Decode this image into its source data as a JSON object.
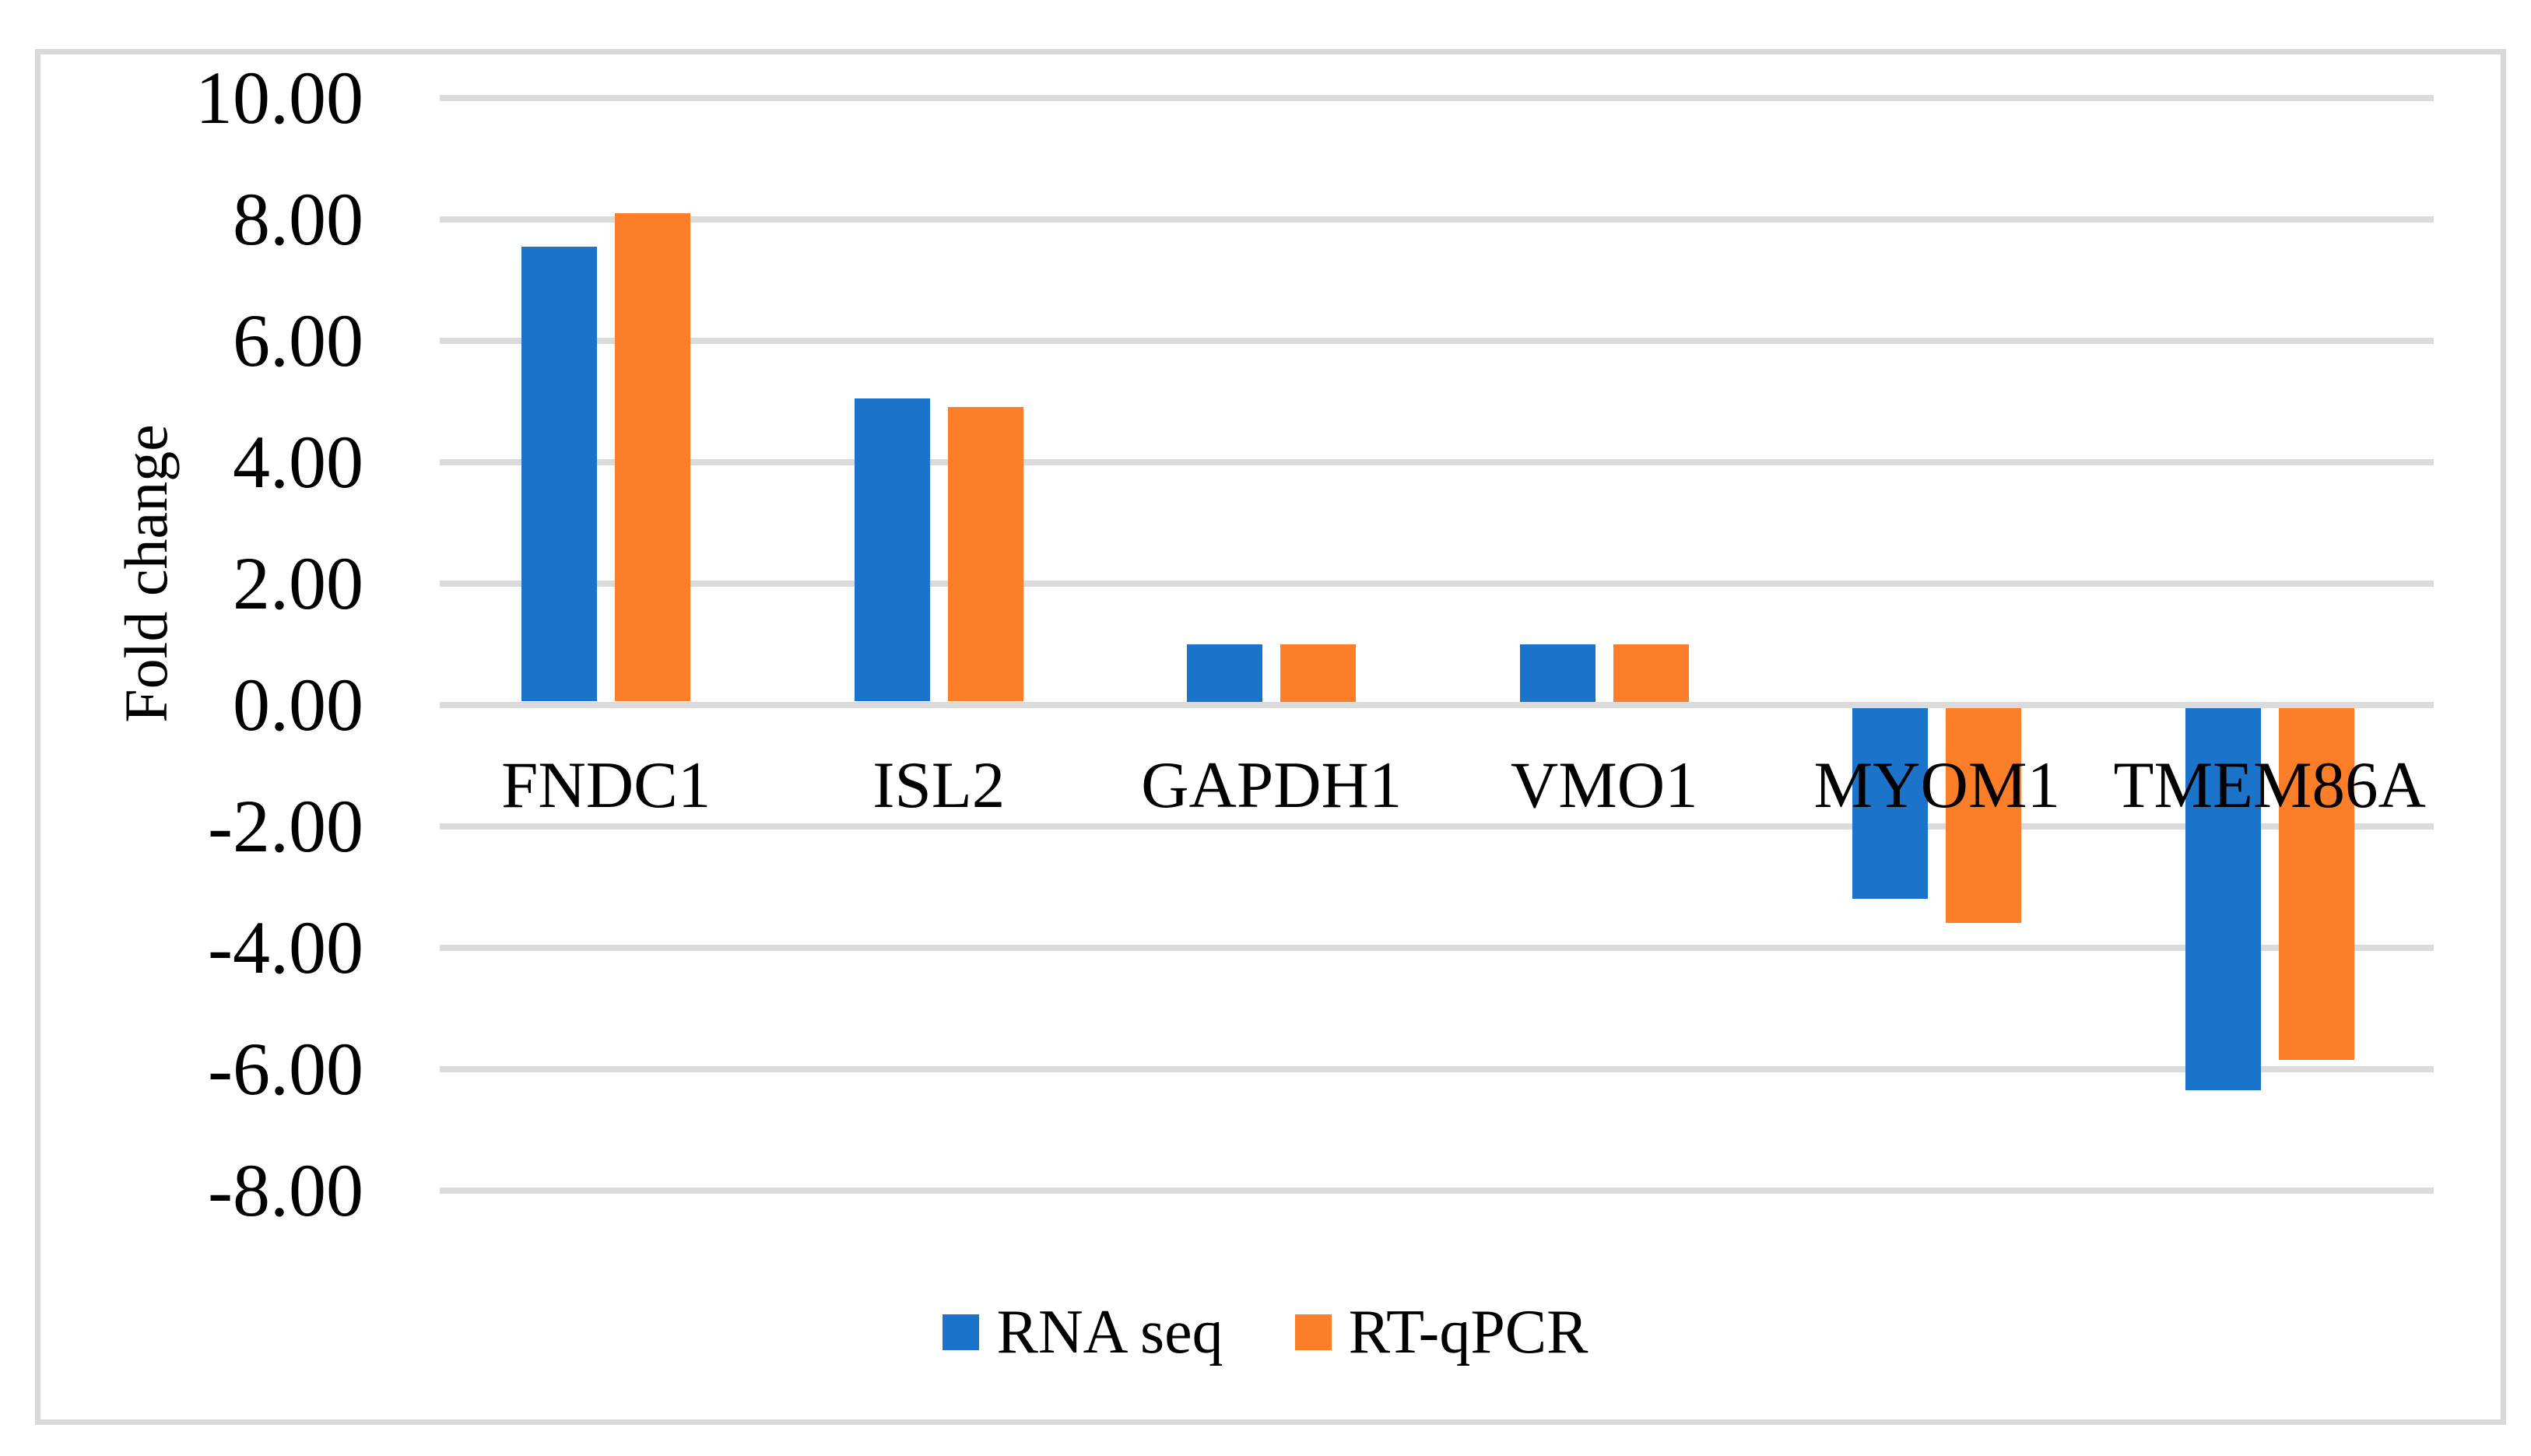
{
  "figure": {
    "background": "#FFFFFF",
    "frame_color": "#D9D9D9"
  },
  "chart_data": {
    "type": "bar",
    "title": "",
    "xlabel": "",
    "ylabel": "Fold change",
    "categories": [
      "FNDC1",
      "ISL2",
      "GAPDH1",
      "VMO1",
      "MYOM1",
      "TMEM86A"
    ],
    "series": [
      {
        "name": "RNA seq",
        "color": "#1B74CA",
        "values": [
          7.55,
          5.05,
          1.0,
          1.0,
          -3.2,
          -6.35
        ]
      },
      {
        "name": "RT-qPCR",
        "color": "#FD7E28",
        "values": [
          8.1,
          4.9,
          1.0,
          1.0,
          -3.6,
          -5.85
        ]
      }
    ],
    "ylim": [
      -8,
      10
    ],
    "ytick_step": 2,
    "ytick_labels": [
      "10.00",
      "8.00",
      "6.00",
      "4.00",
      "2.00",
      "0.00",
      "-2.00",
      "-4.00",
      "-6.00",
      "-8.00"
    ],
    "grid": true,
    "gridline_color": "#DBDBDB",
    "legend_position": "bottom-center"
  },
  "legend": {
    "items": [
      {
        "label": "RNA seq",
        "color": "#1B74CA",
        "swatch": "blue-square"
      },
      {
        "label": "RT-qPCR",
        "color": "#FD7E28",
        "swatch": "orange-square"
      }
    ]
  }
}
